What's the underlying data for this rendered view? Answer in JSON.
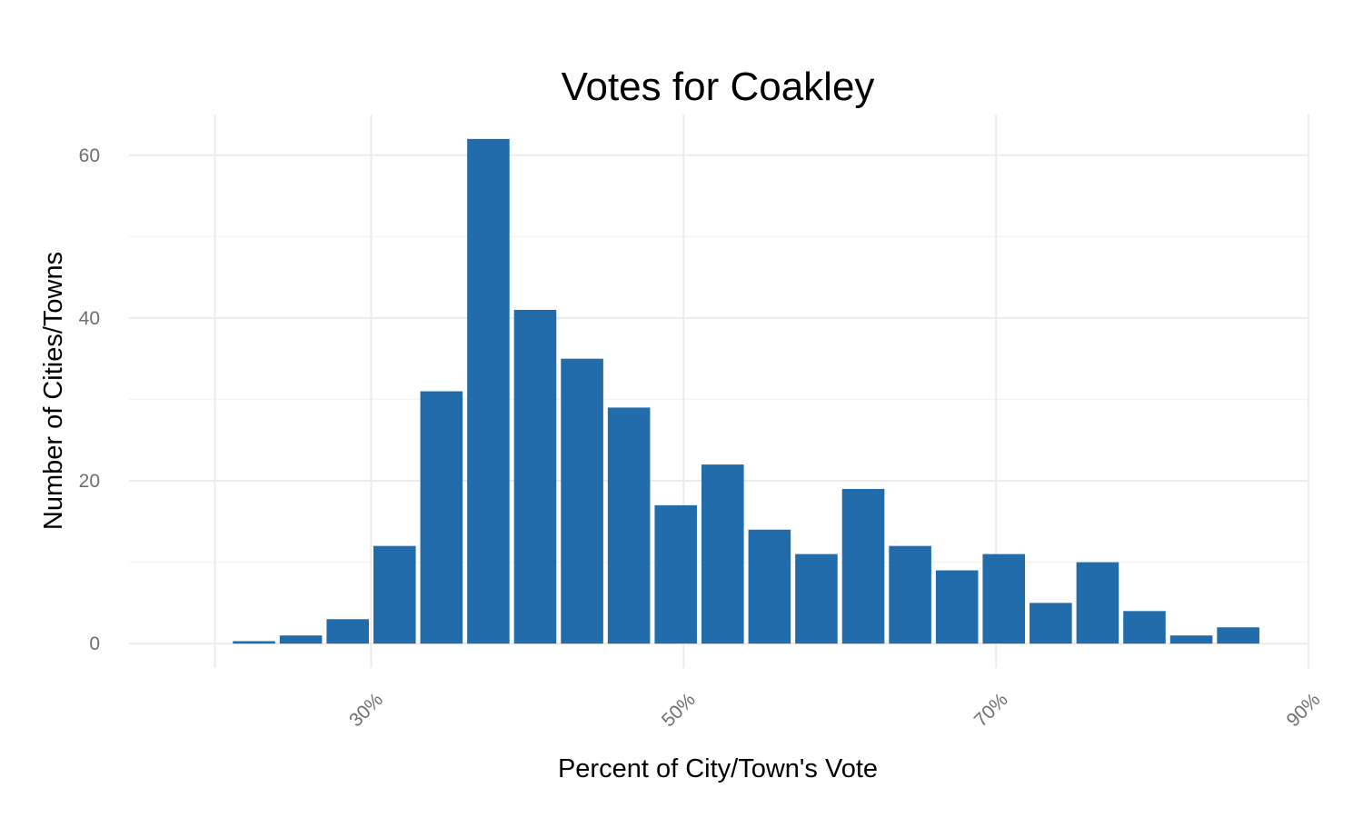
{
  "chart_data": {
    "type": "bar",
    "title": "Votes for Coakley",
    "xlabel": "Percent of City/Town's Vote",
    "ylabel": "Number of Cities/Towns",
    "bar_color": "#226cab",
    "grid": true,
    "xlim": [
      14.5,
      90
    ],
    "ylim": [
      -3,
      65
    ],
    "x_ticks": [
      {
        "value": 20,
        "label": ""
      },
      {
        "value": 30,
        "label": "30%"
      },
      {
        "value": 50,
        "label": "50%"
      },
      {
        "value": 70,
        "label": "70%"
      },
      {
        "value": 90,
        "label": "90%"
      }
    ],
    "y_ticks": [
      {
        "value": 0,
        "label": "0"
      },
      {
        "value": 20,
        "label": "20"
      },
      {
        "value": 40,
        "label": "40"
      },
      {
        "value": 60,
        "label": "60"
      }
    ],
    "bin_width": 3,
    "bins": [
      {
        "x": 22.5,
        "count": 0.3
      },
      {
        "x": 25.5,
        "count": 1
      },
      {
        "x": 28.5,
        "count": 3
      },
      {
        "x": 31.5,
        "count": 12
      },
      {
        "x": 34.5,
        "count": 31
      },
      {
        "x": 37.5,
        "count": 62
      },
      {
        "x": 40.5,
        "count": 41
      },
      {
        "x": 43.5,
        "count": 35
      },
      {
        "x": 46.5,
        "count": 29
      },
      {
        "x": 49.5,
        "count": 17
      },
      {
        "x": 52.5,
        "count": 22
      },
      {
        "x": 55.5,
        "count": 14
      },
      {
        "x": 58.5,
        "count": 11
      },
      {
        "x": 61.5,
        "count": 19
      },
      {
        "x": 64.5,
        "count": 12
      },
      {
        "x": 67.5,
        "count": 9
      },
      {
        "x": 70.5,
        "count": 11
      },
      {
        "x": 73.5,
        "count": 5
      },
      {
        "x": 76.5,
        "count": 10
      },
      {
        "x": 79.5,
        "count": 4
      },
      {
        "x": 82.5,
        "count": 1
      },
      {
        "x": 85.5,
        "count": 2
      }
    ]
  }
}
